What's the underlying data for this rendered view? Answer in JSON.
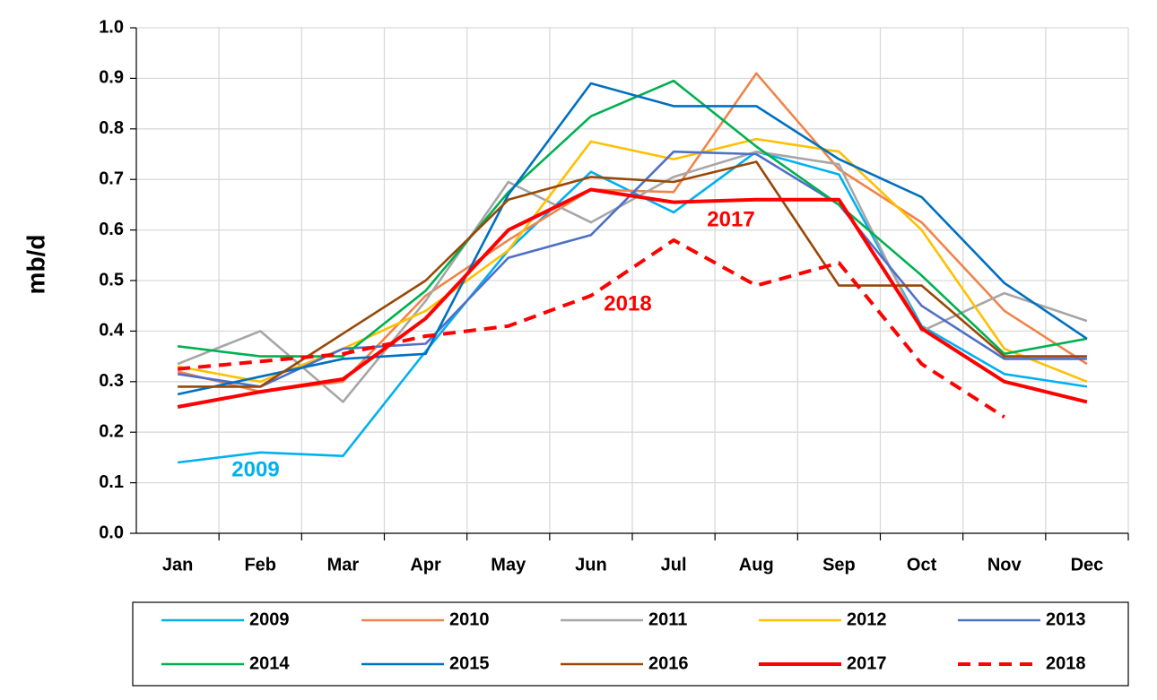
{
  "chart_data": {
    "type": "line",
    "y_label": "mb/d",
    "categories": [
      "Jan",
      "Feb",
      "Mar",
      "Apr",
      "May",
      "Jun",
      "Jul",
      "Aug",
      "Sep",
      "Oct",
      "Nov",
      "Dec"
    ],
    "ylim": [
      0,
      1
    ],
    "yticks": [
      {
        "value": 0,
        "label": "0.0"
      },
      0.1,
      0.2,
      0.3,
      0.4,
      0.5,
      0.6,
      0.7,
      0.8,
      0.9,
      {
        "value": 1,
        "label": "1.0"
      }
    ],
    "grid": true,
    "legend": "bottom",
    "series": [
      {
        "name": "2009",
        "color": "#00b0f0",
        "values": [
          0.14,
          0.16,
          0.153,
          0.36,
          0.56,
          0.715,
          0.635,
          0.755,
          0.71,
          0.41,
          0.315,
          0.29
        ]
      },
      {
        "name": "2010",
        "color": "#f0834a",
        "values": [
          0.32,
          0.28,
          0.3,
          0.47,
          0.58,
          0.68,
          0.675,
          0.91,
          0.72,
          0.615,
          0.44,
          0.335
        ]
      },
      {
        "name": "2011",
        "color": "#a6a6a6",
        "values": [
          0.335,
          0.4,
          0.26,
          0.46,
          0.695,
          0.615,
          0.705,
          0.755,
          0.73,
          0.4,
          0.475,
          0.42
        ]
      },
      {
        "name": "2012",
        "color": "#ffc000",
        "values": [
          0.33,
          0.3,
          0.365,
          0.44,
          0.56,
          0.775,
          0.74,
          0.78,
          0.755,
          0.6,
          0.365,
          0.3
        ]
      },
      {
        "name": "2013",
        "color": "#4f6fc8",
        "values": [
          0.315,
          0.29,
          0.365,
          0.375,
          0.545,
          0.59,
          0.755,
          0.75,
          0.65,
          0.45,
          0.345,
          0.345
        ]
      },
      {
        "name": "2014",
        "color": "#00b050",
        "values": [
          0.37,
          0.35,
          0.35,
          0.48,
          0.675,
          0.825,
          0.895,
          0.765,
          0.65,
          0.51,
          0.355,
          0.385
        ]
      },
      {
        "name": "2015",
        "color": "#0070c0",
        "values": [
          0.275,
          0.31,
          0.345,
          0.355,
          0.67,
          0.89,
          0.845,
          0.845,
          0.74,
          0.665,
          0.495,
          0.385
        ]
      },
      {
        "name": "2016",
        "color": "#984807",
        "values": [
          0.29,
          0.29,
          0.395,
          0.5,
          0.66,
          0.705,
          0.695,
          0.735,
          0.49,
          0.49,
          0.35,
          0.35
        ]
      },
      {
        "name": "2017",
        "color": "#ff0000",
        "line_width": 4,
        "values": [
          0.25,
          0.28,
          0.305,
          0.425,
          0.6,
          0.68,
          0.655,
          0.66,
          0.66,
          0.405,
          0.3,
          0.26
        ]
      },
      {
        "name": "2018",
        "color": "#ff0000",
        "line_width": 4,
        "style": "dashed",
        "values": [
          0.325,
          0.34,
          0.355,
          0.39,
          0.41,
          0.47,
          0.58,
          0.49,
          0.535,
          0.335,
          0.23,
          null
        ]
      }
    ],
    "annotations": [
      {
        "text": "2009",
        "color": "#00b0f0"
      },
      {
        "text": "2017",
        "color": "#ff0000"
      },
      {
        "text": "2018",
        "color": "#ff0000"
      }
    ]
  }
}
